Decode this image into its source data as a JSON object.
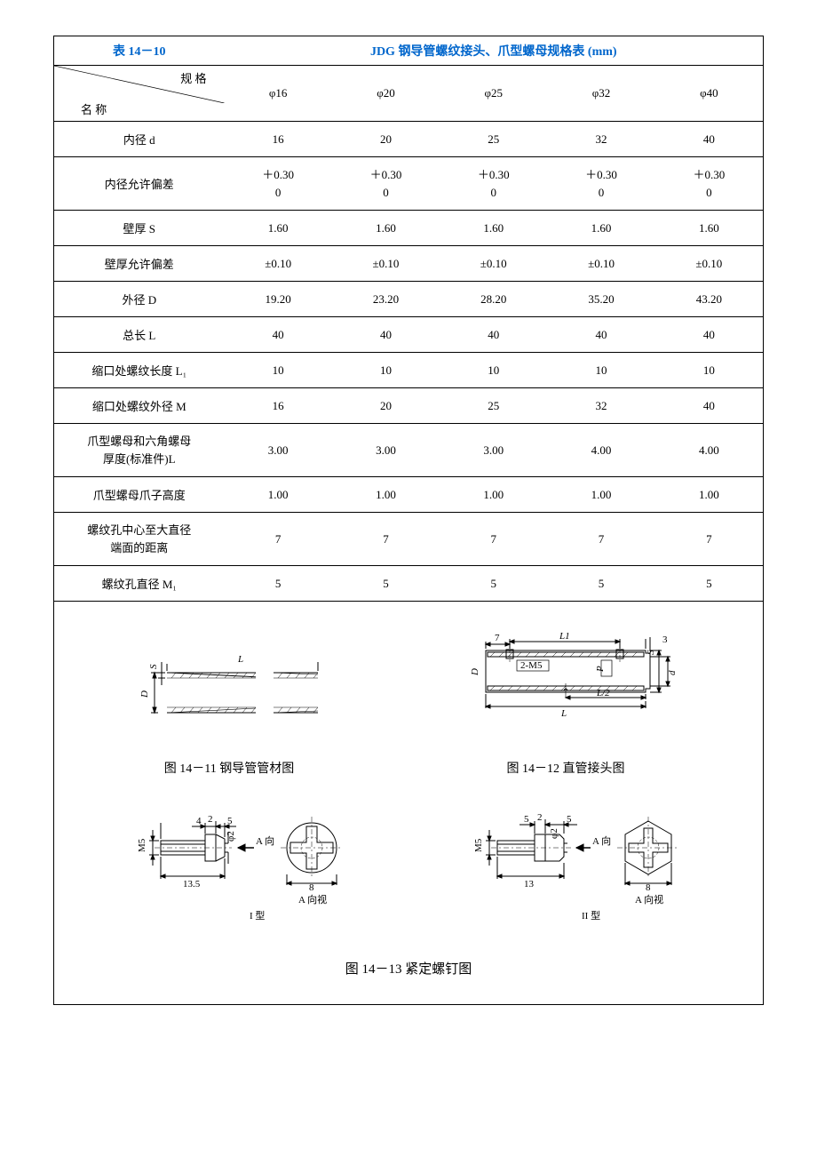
{
  "table": {
    "label": "表 14－10",
    "title": "JDG 钢导管螺纹接头、爪型螺母规格表 (mm)",
    "diag_top": "规  格",
    "diag_bot": "名    称",
    "columns": [
      "φ16",
      "φ20",
      "φ25",
      "φ32",
      "φ40"
    ],
    "rows": [
      {
        "name": "内径 d",
        "vals": [
          "16",
          "20",
          "25",
          "32",
          "40"
        ],
        "multiline": false
      },
      {
        "name": "内径允许偏差",
        "vals": [
          "＋0.30\n0",
          "＋0.30\n0",
          "＋0.30\n0",
          "＋0.30\n0",
          "＋0.30\n0"
        ],
        "multiline": true
      },
      {
        "name": "壁厚 S",
        "vals": [
          "1.60",
          "1.60",
          "1.60",
          "1.60",
          "1.60"
        ],
        "multiline": false
      },
      {
        "name": "壁厚允许偏差",
        "vals": [
          "±0.10",
          "±0.10",
          "±0.10",
          "±0.10",
          "±0.10"
        ],
        "multiline": false
      },
      {
        "name": "外径 D",
        "vals": [
          "19.20",
          "23.20",
          "28.20",
          "35.20",
          "43.20"
        ],
        "multiline": false
      },
      {
        "name": "总长 L",
        "vals": [
          "40",
          "40",
          "40",
          "40",
          "40"
        ],
        "multiline": false
      },
      {
        "name": "缩口处螺纹长度 L₁",
        "vals": [
          "10",
          "10",
          "10",
          "10",
          "10"
        ],
        "multiline": false
      },
      {
        "name": "缩口处螺纹外径 M",
        "vals": [
          "16",
          "20",
          "25",
          "32",
          "40"
        ],
        "multiline": false
      },
      {
        "name": "爪型螺母和六角螺母\n厚度(标准件)L",
        "vals": [
          "3.00",
          "3.00",
          "3.00",
          "4.00",
          "4.00"
        ],
        "multiline": true,
        "name_multiline": true
      },
      {
        "name": "爪型螺母爪子高度",
        "vals": [
          "1.00",
          "1.00",
          "1.00",
          "1.00",
          "1.00"
        ],
        "multiline": false
      },
      {
        "name": "螺纹孔中心至大直径\n端面的距离",
        "vals": [
          "7",
          "7",
          "7",
          "7",
          "7"
        ],
        "multiline": true,
        "name_multiline": true
      },
      {
        "name": "螺纹孔直径 M₁",
        "vals": [
          "5",
          "5",
          "5",
          "5",
          "5"
        ],
        "multiline": false
      }
    ]
  },
  "figures": {
    "fig1": {
      "caption": "图 14－11  钢导管管材图",
      "labels": {
        "L": "L",
        "S": "S",
        "D": "D"
      }
    },
    "fig2": {
      "caption": "图 14－12  直管接头图",
      "labels": {
        "L1": "L1",
        "num7": "7",
        "M5": "2-M5",
        "D": "D",
        "d": "d",
        "S": "S",
        "L2": "L/2",
        "L": "L",
        "num3": "3",
        "P": "P"
      }
    },
    "fig3": {
      "type_label": "I 型",
      "a_view": "A 向视",
      "a_dir": "A 向",
      "labels": {
        "M5": "M5",
        "n4": "4",
        "n2": "2",
        "n5": "5",
        "phi2": "φ2",
        "n135": "13.5",
        "n8": "8"
      }
    },
    "fig4": {
      "type_label": "II 型",
      "a_view": "A 向视",
      "a_dir": "A 向",
      "labels": {
        "M5": "M5",
        "n5a": "5",
        "n2": "2",
        "n5b": "5",
        "phi2": "φ2",
        "n13": "13",
        "n8": "8"
      }
    },
    "bottom_caption": "图 14－13  紧定螺钉图"
  },
  "colors": {
    "link": "#0066cc",
    "border": "#000000"
  }
}
